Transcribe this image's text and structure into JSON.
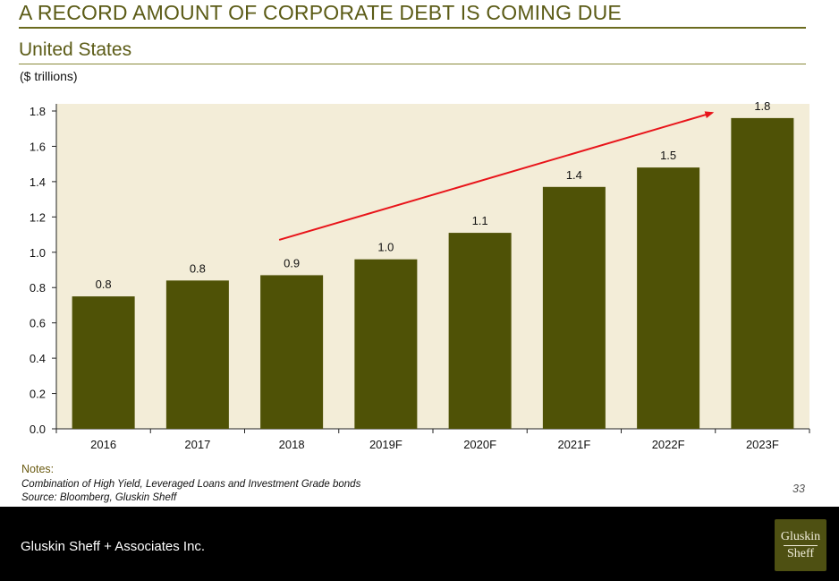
{
  "slide": {
    "title": "A RECORD AMOUNT OF CORPORATE DEBT IS COMING DUE",
    "subtitle": "United States",
    "units": "($ trillions)",
    "page_number": "33"
  },
  "notes": {
    "heading": "Notes:",
    "line1": "Combination of High Yield, Leveraged Loans and Investment Grade bonds",
    "line2": "Source: Bloomberg, Gluskin Sheff"
  },
  "footer": {
    "company": "Gluskin Sheff + Associates Inc.",
    "logo_line1": "Gluskin",
    "logo_line2": "Sheff"
  },
  "colors": {
    "bar": "#4f5206",
    "plot_background": "#f3edd8",
    "trend_arrow": "#e8141a",
    "accent_text": "#5b5b16"
  },
  "chart_data": {
    "type": "bar",
    "categories": [
      "2016",
      "2017",
      "2018",
      "2019F",
      "2020F",
      "2021F",
      "2022F",
      "2023F"
    ],
    "values": [
      0.75,
      0.84,
      0.87,
      0.96,
      1.11,
      1.37,
      1.48,
      1.76
    ],
    "data_labels": [
      "0.8",
      "0.8",
      "0.9",
      "1.0",
      "1.1",
      "1.4",
      "1.5",
      "1.8"
    ],
    "ylim": [
      0,
      1.8
    ],
    "yticks": [
      "0.0",
      "0.2",
      "0.4",
      "0.6",
      "0.8",
      "1.0",
      "1.2",
      "1.4",
      "1.6",
      "1.8"
    ],
    "grid": false,
    "legend": "none",
    "annotations": [
      {
        "type": "trend-arrow",
        "from": {
          "x": "2018",
          "y": 1.07
        },
        "to": {
          "x": "2023F",
          "y": 1.79
        }
      }
    ]
  }
}
